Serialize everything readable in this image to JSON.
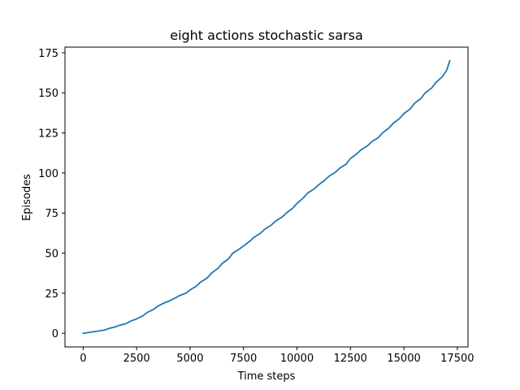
{
  "chart_data": {
    "type": "line",
    "title": "eight actions  stochastic sarsa",
    "xlabel": "Time steps",
    "ylabel": "Episodes",
    "xlim": [
      -850,
      18000
    ],
    "ylim": [
      -8.5,
      178.5
    ],
    "xticks": [
      0,
      2500,
      5000,
      7500,
      10000,
      12500,
      15000,
      17500
    ],
    "yticks": [
      0,
      25,
      50,
      75,
      100,
      125,
      150,
      175
    ],
    "grid": false,
    "legend": "none",
    "series": [
      {
        "color": "#1f77b4",
        "x": [
          0,
          500,
          1000,
          1200,
          1500,
          1700,
          2000,
          2200,
          2500,
          2800,
          3000,
          3300,
          3500,
          3800,
          4000,
          4300,
          4500,
          4800,
          5000,
          5300,
          5500,
          5800,
          6000,
          6300,
          6500,
          6800,
          7000,
          7300,
          7500,
          7800,
          8000,
          8300,
          8500,
          8800,
          9000,
          9300,
          9500,
          9800,
          10000,
          10300,
          10500,
          10800,
          11000,
          11300,
          11500,
          11800,
          12000,
          12300,
          12500,
          12800,
          13000,
          13300,
          13500,
          13800,
          14000,
          14300,
          14500,
          14800,
          15000,
          15300,
          15500,
          15800,
          16000,
          16300,
          16500,
          16800,
          17000,
          17150
        ],
        "values": [
          0,
          1,
          2,
          3,
          4,
          5,
          6,
          7.5,
          9,
          11,
          13,
          15,
          17,
          19,
          20,
          22,
          23.5,
          25,
          27,
          29.5,
          32,
          34.5,
          37.5,
          40.5,
          43.5,
          46.5,
          50,
          52.5,
          54.5,
          57.5,
          60,
          62.5,
          65,
          67.5,
          70,
          72.5,
          75,
          78,
          81,
          84.5,
          87.5,
          90,
          92.5,
          95.5,
          98,
          100.5,
          103,
          105.5,
          109,
          112,
          114.5,
          117,
          119.5,
          122,
          125,
          128,
          131,
          134,
          137,
          140,
          143.5,
          146.5,
          150,
          153,
          156.5,
          160,
          164,
          170
        ]
      }
    ]
  }
}
